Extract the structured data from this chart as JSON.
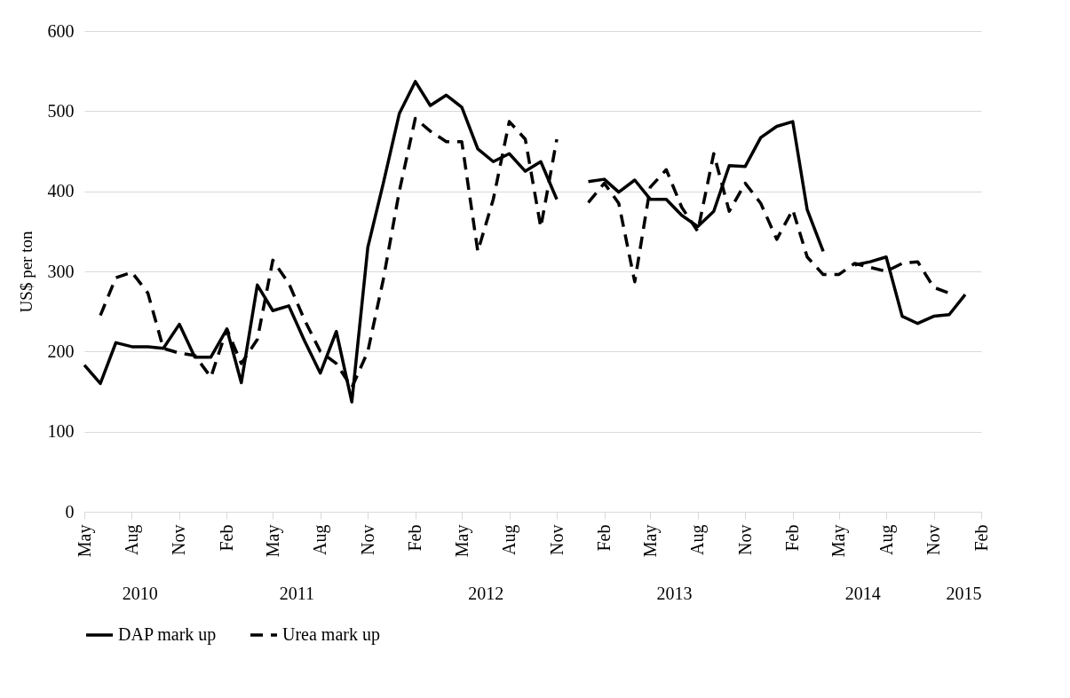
{
  "chart_data": {
    "type": "line",
    "ylabel": "US$ per ton",
    "x": [
      "2010-05",
      "2010-06",
      "2010-07",
      "2010-08",
      "2010-09",
      "2010-10",
      "2010-11",
      "2010-12",
      "2011-01",
      "2011-02",
      "2011-03",
      "2011-04",
      "2011-05",
      "2011-06",
      "2011-07",
      "2011-08",
      "2011-09",
      "2011-10",
      "2011-11",
      "2011-12",
      "2012-01",
      "2012-02",
      "2012-03",
      "2012-04",
      "2012-05",
      "2012-06",
      "2012-07",
      "2012-08",
      "2012-09",
      "2012-10",
      "2012-11",
      "2012-12",
      "2013-01",
      "2013-02",
      "2013-03",
      "2013-04",
      "2013-05",
      "2013-06",
      "2013-07",
      "2013-08",
      "2013-09",
      "2013-10",
      "2013-11",
      "2013-12",
      "2014-01",
      "2014-02",
      "2014-03",
      "2014-04",
      "2014-05",
      "2014-06",
      "2014-07",
      "2014-08",
      "2014-09",
      "2014-10",
      "2014-11",
      "2014-12",
      "2015-01"
    ],
    "series": [
      {
        "name": "DAP mark up",
        "color": "#000000",
        "line_style": "solid",
        "values": [
          183,
          160,
          211,
          206,
          206,
          204,
          234,
          193,
          193,
          228,
          161,
          283,
          251,
          257,
          214,
          173,
          225,
          137,
          330,
          410,
          497,
          537,
          507,
          520,
          505,
          453,
          437,
          447,
          425,
          437,
          390,
          null,
          412,
          415,
          399,
          414,
          390,
          390,
          370,
          356,
          375,
          432,
          431,
          467,
          481,
          487,
          377,
          325,
          null,
          308,
          312,
          318,
          244,
          235,
          244,
          246,
          271
        ]
      },
      {
        "name": "Urea mark up",
        "color": "#000000",
        "line_style": "dashed",
        "values": [
          null,
          245,
          292,
          299,
          273,
          204,
          198,
          195,
          168,
          228,
          185,
          215,
          314,
          285,
          240,
          200,
          185,
          155,
          200,
          290,
          400,
          491,
          475,
          462,
          462,
          325,
          390,
          487,
          465,
          355,
          465,
          null,
          386,
          410,
          385,
          287,
          405,
          427,
          380,
          350,
          447,
          375,
          410,
          385,
          340,
          377,
          318,
          296,
          296,
          310,
          305,
          300,
          310,
          312,
          280,
          273,
          null
        ]
      }
    ],
    "ylim": [
      0,
      600
    ],
    "yticks": [
      0,
      100,
      200,
      300,
      400,
      500,
      600
    ],
    "xlim": [
      "2010-05",
      "2015-02"
    ],
    "xticks": [
      {
        "value": "2010-05",
        "label": "May"
      },
      {
        "value": "2010-08",
        "label": "Aug"
      },
      {
        "value": "2010-11",
        "label": "Nov"
      },
      {
        "value": "2011-02",
        "label": "Feb"
      },
      {
        "value": "2011-05",
        "label": "May"
      },
      {
        "value": "2011-08",
        "label": "Aug"
      },
      {
        "value": "2011-11",
        "label": "Nov"
      },
      {
        "value": "2012-02",
        "label": "Feb"
      },
      {
        "value": "2012-05",
        "label": "May"
      },
      {
        "value": "2012-08",
        "label": "Aug"
      },
      {
        "value": "2012-11",
        "label": "Nov"
      },
      {
        "value": "2013-02",
        "label": "Feb"
      },
      {
        "value": "2013-05",
        "label": "May"
      },
      {
        "value": "2013-08",
        "label": "Aug"
      },
      {
        "value": "2013-11",
        "label": "Nov"
      },
      {
        "value": "2014-02",
        "label": "Feb"
      },
      {
        "value": "2014-05",
        "label": "May"
      },
      {
        "value": "2014-08",
        "label": "Aug"
      },
      {
        "value": "2014-11",
        "label": "Nov"
      },
      {
        "value": "2015-02",
        "label": "Feb"
      }
    ],
    "x2lim": [
      "2010-05",
      "2015-02"
    ],
    "x2ticks": [
      {
        "value": "2010-08-16",
        "label": "2010"
      },
      {
        "value": "2011-06-16",
        "label": "2011"
      },
      {
        "value": "2012-06-16",
        "label": "2012"
      },
      {
        "value": "2013-06-16",
        "label": "2013"
      },
      {
        "value": "2014-06-16",
        "label": "2014"
      },
      {
        "value": "2015-02",
        "label": "2015"
      }
    ],
    "grid": "y",
    "legend": "bottom"
  }
}
